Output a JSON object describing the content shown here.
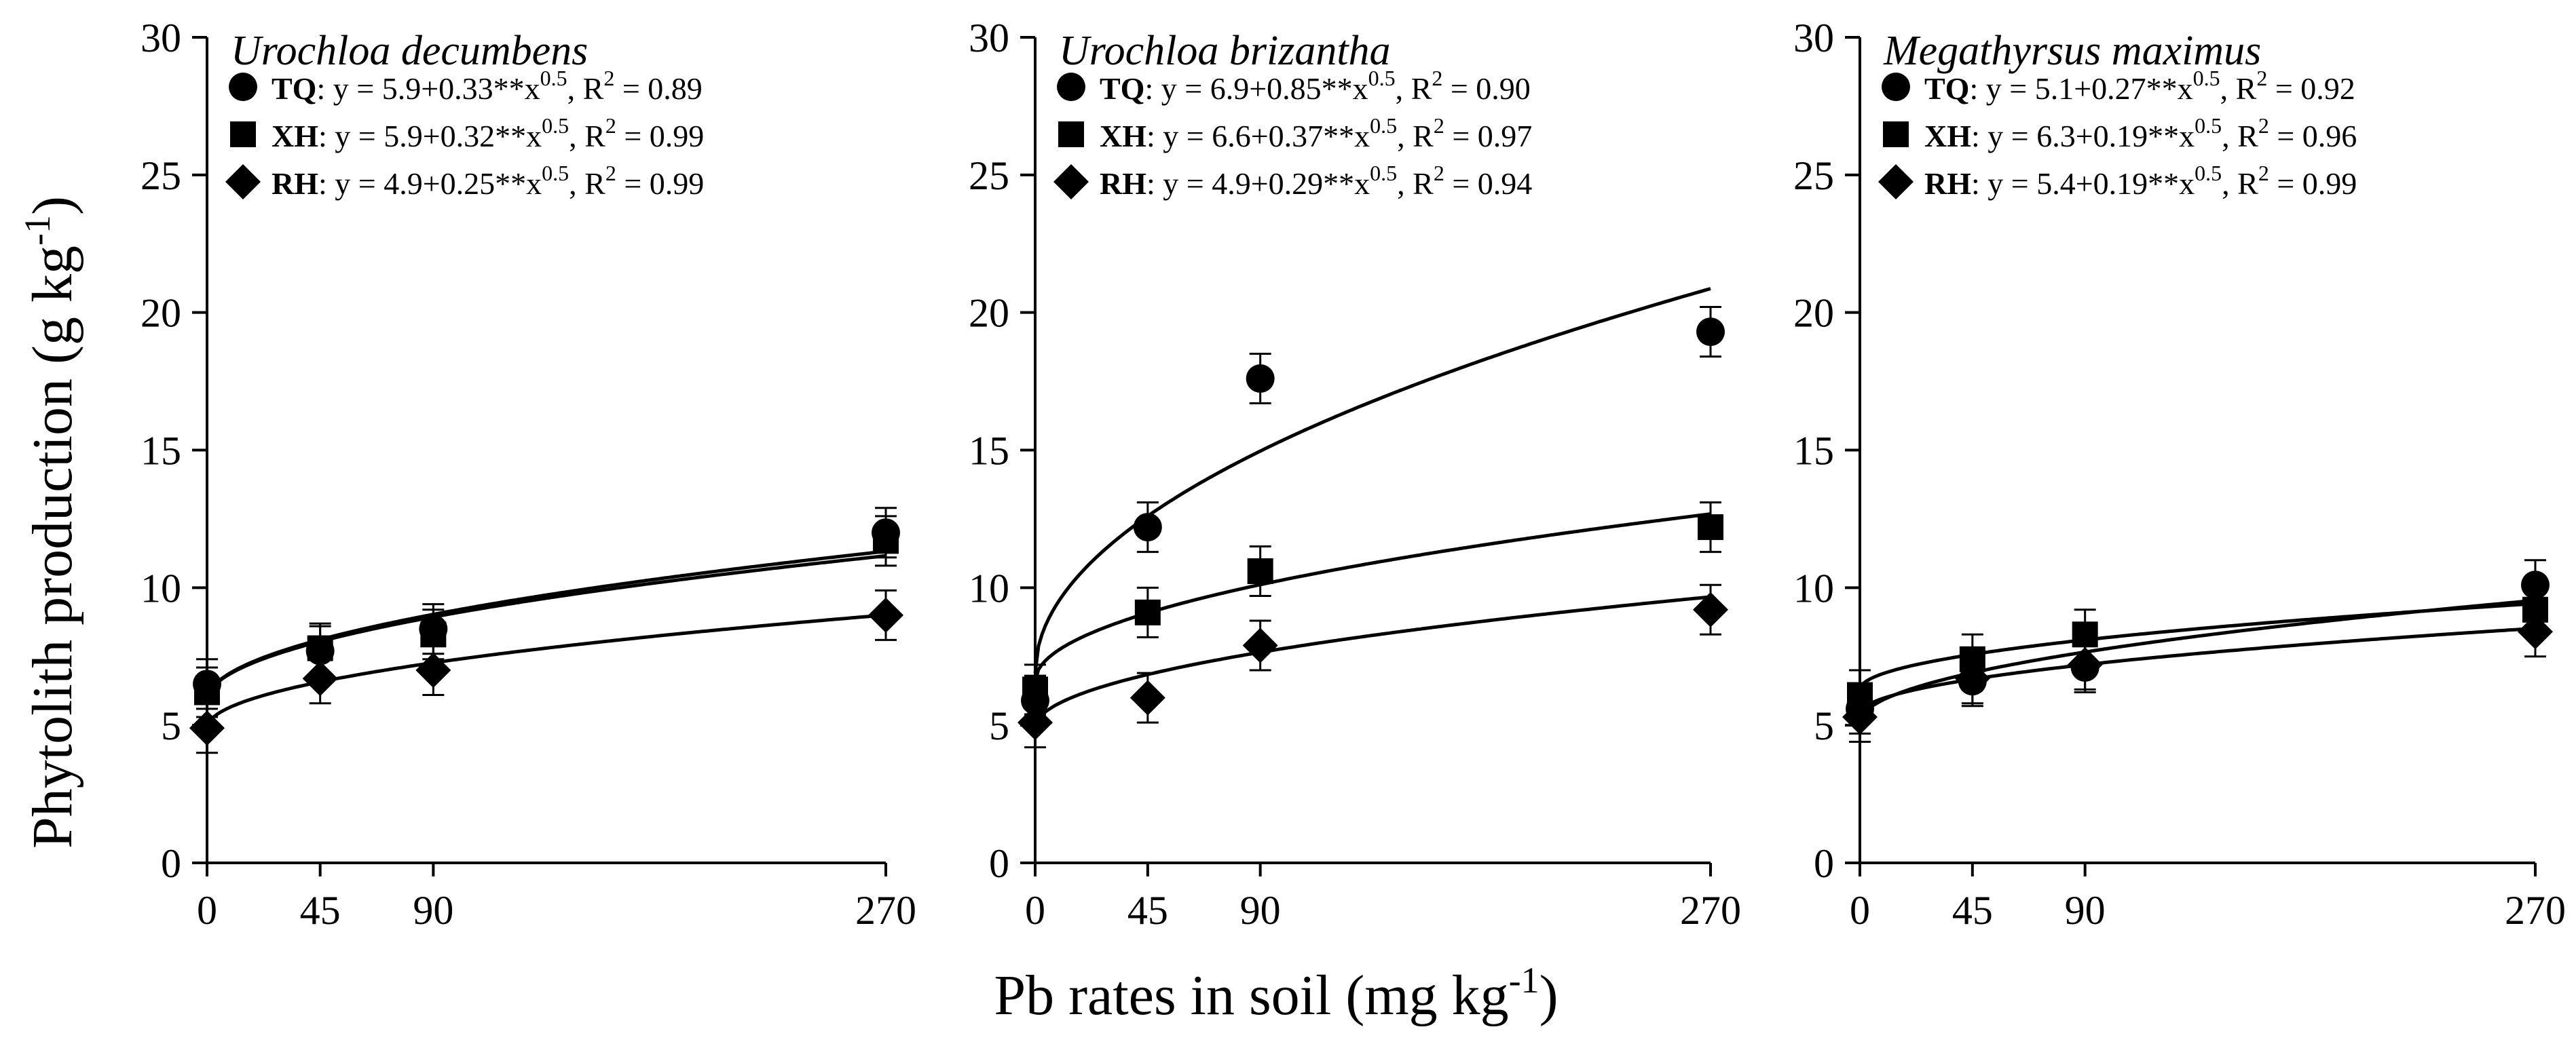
{
  "figure": {
    "ylabel": {
      "main": "Phytolith production (g kg",
      "sup": "-1",
      "close": ")"
    },
    "xlabel": {
      "main": "Pb rates in soil (mg kg",
      "sup": "-1",
      "close": ")"
    }
  },
  "chart_data": [
    {
      "type": "scatter",
      "title": "Urochloa decumbens",
      "x": [
        0,
        45,
        90,
        270
      ],
      "xticks": [
        "0",
        "45",
        "90",
        "270"
      ],
      "yticks": [
        "0",
        "5",
        "10",
        "15",
        "20",
        "25",
        "30"
      ],
      "xlim": [
        0,
        270
      ],
      "ylim": [
        0,
        30
      ],
      "series": [
        {
          "name": "TQ",
          "marker": "circle",
          "values": [
            6.5,
            7.7,
            8.5,
            12.0
          ],
          "errors": [
            0.9,
            0.9,
            0.9,
            0.9
          ],
          "eq": {
            "a": 5.9,
            "b": 0.33
          },
          "legend": {
            "code": "TQ",
            "pre": ": y = 5.9+0.33**x",
            "exp": "0.5",
            "mid": ", R",
            "r2": "2",
            "post": " = 0.89"
          }
        },
        {
          "name": "XH",
          "marker": "square",
          "values": [
            6.2,
            7.8,
            8.3,
            11.7
          ],
          "errors": [
            0.9,
            0.9,
            0.9,
            0.9
          ],
          "eq": {
            "a": 5.9,
            "b": 0.32
          },
          "legend": {
            "code": "XH",
            "pre": ": y = 5.9+0.32**x",
            "exp": "0.5",
            "mid": ", R",
            "r2": "2",
            "post": " = 0.99"
          }
        },
        {
          "name": "RH",
          "marker": "diamond",
          "values": [
            4.9,
            6.7,
            7.0,
            9.0
          ],
          "errors": [
            0.9,
            0.9,
            0.9,
            0.9
          ],
          "eq": {
            "a": 4.9,
            "b": 0.25
          },
          "legend": {
            "code": "RH",
            "pre": ": y = 4.9+0.25**x",
            "exp": "0.5",
            "mid": ", R",
            "r2": "2",
            "post": " = 0.99"
          }
        }
      ]
    },
    {
      "type": "scatter",
      "title": "Urochloa brizantha",
      "x": [
        0,
        45,
        90,
        270
      ],
      "xticks": [
        "0",
        "45",
        "90",
        "270"
      ],
      "yticks": [
        "0",
        "5",
        "10",
        "15",
        "20",
        "25",
        "30"
      ],
      "xlim": [
        0,
        270
      ],
      "ylim": [
        0,
        30
      ],
      "series": [
        {
          "name": "TQ",
          "marker": "circle",
          "values": [
            5.9,
            12.2,
            17.6,
            19.3
          ],
          "errors": [
            0.9,
            0.9,
            0.9,
            0.9
          ],
          "eq": {
            "a": 6.9,
            "b": 0.85
          },
          "legend": {
            "code": "TQ",
            "pre": ": y = 6.9+0.85**x",
            "exp": "0.5",
            "mid": ", R",
            "r2": "2",
            "post": " = 0.90"
          }
        },
        {
          "name": "XH",
          "marker": "square",
          "values": [
            6.3,
            9.1,
            10.6,
            12.2
          ],
          "errors": [
            0.9,
            0.9,
            0.9,
            0.9
          ],
          "eq": {
            "a": 6.6,
            "b": 0.37
          },
          "legend": {
            "code": "XH",
            "pre": ": y = 6.6+0.37**x",
            "exp": "0.5",
            "mid": ", R",
            "r2": "2",
            "post": " = 0.97"
          }
        },
        {
          "name": "RH",
          "marker": "diamond",
          "values": [
            5.1,
            6.0,
            7.9,
            9.2
          ],
          "errors": [
            0.9,
            0.9,
            0.9,
            0.9
          ],
          "eq": {
            "a": 4.9,
            "b": 0.29
          },
          "legend": {
            "code": "RH",
            "pre": ": y = 4.9+0.29**x",
            "exp": "0.5",
            "mid": ", R",
            "r2": "2",
            "post": " = 0.94"
          }
        }
      ]
    },
    {
      "type": "scatter",
      "title": "Megathyrsus maximus",
      "x": [
        0,
        45,
        90,
        270
      ],
      "xticks": [
        "0",
        "45",
        "90",
        "270"
      ],
      "yticks": [
        "0",
        "5",
        "10",
        "15",
        "20",
        "25",
        "30"
      ],
      "xlim": [
        0,
        270
      ],
      "ylim": [
        0,
        30
      ],
      "series": [
        {
          "name": "TQ",
          "marker": "circle",
          "values": [
            5.6,
            6.6,
            7.1,
            10.1
          ],
          "errors": [
            0.9,
            0.9,
            0.9,
            0.9
          ],
          "eq": {
            "a": 5.1,
            "b": 0.27
          },
          "legend": {
            "code": "TQ",
            "pre": ": y = 5.1+0.27**x",
            "exp": "0.5",
            "mid": ", R",
            "r2": "2",
            "post": " = 0.92"
          }
        },
        {
          "name": "XH",
          "marker": "square",
          "values": [
            6.1,
            7.4,
            8.3,
            9.2
          ],
          "errors": [
            0.9,
            0.9,
            0.9,
            0.9
          ],
          "eq": {
            "a": 6.3,
            "b": 0.19
          },
          "legend": {
            "code": "XH",
            "pre": ": y = 6.3+0.19**x",
            "exp": "0.5",
            "mid": ", R",
            "r2": "2",
            "post": " = 0.96"
          }
        },
        {
          "name": "RH",
          "marker": "diamond",
          "values": [
            5.3,
            6.7,
            7.2,
            8.4
          ],
          "errors": [
            0.9,
            0.9,
            0.9,
            0.9
          ],
          "eq": {
            "a": 5.4,
            "b": 0.19
          },
          "legend": {
            "code": "RH",
            "pre": ": y = 5.4+0.19**x",
            "exp": "0.5",
            "mid": ", R",
            "r2": "2",
            "post": " = 0.99"
          }
        }
      ]
    }
  ]
}
